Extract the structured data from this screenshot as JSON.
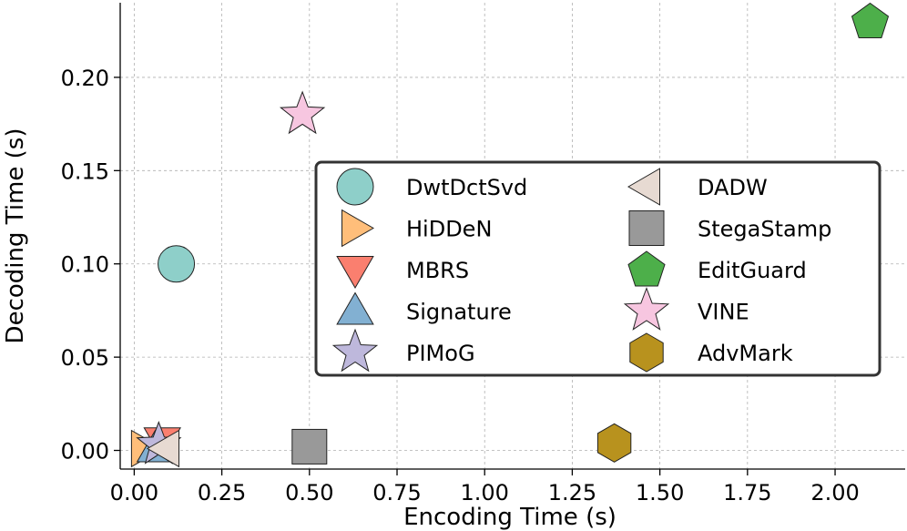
{
  "chart_data": {
    "type": "scatter",
    "title": "",
    "xlabel": "Encoding Time (s)",
    "ylabel": "Decoding Time (s)",
    "xlim": [
      -0.04,
      2.2
    ],
    "ylim": [
      -0.01,
      0.24
    ],
    "xticks": [
      0.0,
      0.25,
      0.5,
      0.75,
      1.0,
      1.25,
      1.5,
      1.75,
      2.0
    ],
    "xtick_labels": [
      "0.00",
      "0.25",
      "0.50",
      "0.75",
      "1.00",
      "1.25",
      "1.50",
      "1.75",
      "2.00"
    ],
    "yticks": [
      0.0,
      0.05,
      0.1,
      0.15,
      0.2
    ],
    "ytick_labels": [
      "0.00",
      "0.05",
      "0.10",
      "0.15",
      "0.20"
    ],
    "grid": true,
    "legend_placement": "center-right",
    "legend_columns": 2,
    "series": [
      {
        "name": "DwtDctSvd",
        "marker": "circle",
        "color": "#8ecfc9",
        "x": 0.12,
        "y": 0.1
      },
      {
        "name": "HiDDeN",
        "marker": "triangle-right",
        "color": "#ffbe7a",
        "x": 0.03,
        "y": 0.001
      },
      {
        "name": "MBRS",
        "marker": "triangle-down",
        "color": "#fa7f6f",
        "x": 0.08,
        "y": 0.005
      },
      {
        "name": "Signature",
        "marker": "triangle-up",
        "color": "#82b0d2",
        "x": 0.06,
        "y": 0.001
      },
      {
        "name": "PIMoG",
        "marker": "star",
        "color": "#beb8dc",
        "x": 0.07,
        "y": 0.003
      },
      {
        "name": "DADW",
        "marker": "triangle-left",
        "color": "#e7dad2",
        "x": 0.09,
        "y": 0.001
      },
      {
        "name": "StegaStamp",
        "marker": "square",
        "color": "#999999",
        "x": 0.5,
        "y": 0.002
      },
      {
        "name": "EditGuard",
        "marker": "pentagon",
        "color": "#4daf4a",
        "x": 2.1,
        "y": 0.23
      },
      {
        "name": "VINE",
        "marker": "star",
        "color": "#f7c6e0",
        "x": 0.48,
        "y": 0.18
      },
      {
        "name": "AdvMark",
        "marker": "hexagon",
        "color": "#b8921e",
        "x": 1.37,
        "y": 0.004
      }
    ]
  }
}
